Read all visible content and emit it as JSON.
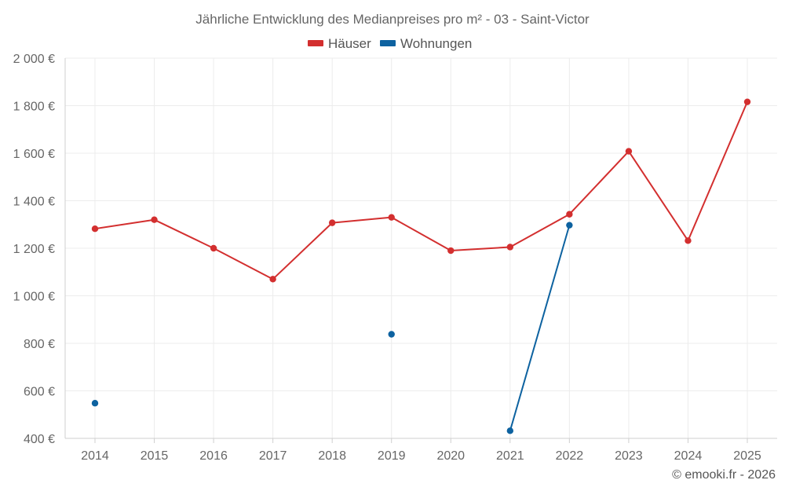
{
  "chart_data": {
    "type": "line",
    "title": "Jährliche Entwicklung des Medianpreises pro m² - 03 - Saint-Victor",
    "categories": [
      "2014",
      "2015",
      "2016",
      "2017",
      "2018",
      "2019",
      "2020",
      "2021",
      "2022",
      "2023",
      "2024",
      "2025"
    ],
    "ylim": [
      400,
      2000
    ],
    "yticks": [
      400,
      600,
      800,
      1000,
      1200,
      1400,
      1600,
      1800,
      2000
    ],
    "ytick_labels": [
      "400 €",
      "600 €",
      "800 €",
      "1 000 €",
      "1 200 €",
      "1 400 €",
      "1 600 €",
      "1 800 €",
      "2 000 €"
    ],
    "grid": true,
    "legend_position": "top-center",
    "series": [
      {
        "name": "Häuser",
        "color": "#d32f2f",
        "values": [
          1282,
          1320,
          1200,
          1070,
          1307,
          1330,
          1190,
          1205,
          1343,
          1608,
          1232,
          1816
        ]
      },
      {
        "name": "Wohnungen",
        "color": "#0d62a0",
        "values": [
          548,
          null,
          null,
          null,
          null,
          838,
          null,
          432,
          1297,
          null,
          null,
          null
        ]
      }
    ]
  },
  "credit": "© emooki.fr - 2026"
}
